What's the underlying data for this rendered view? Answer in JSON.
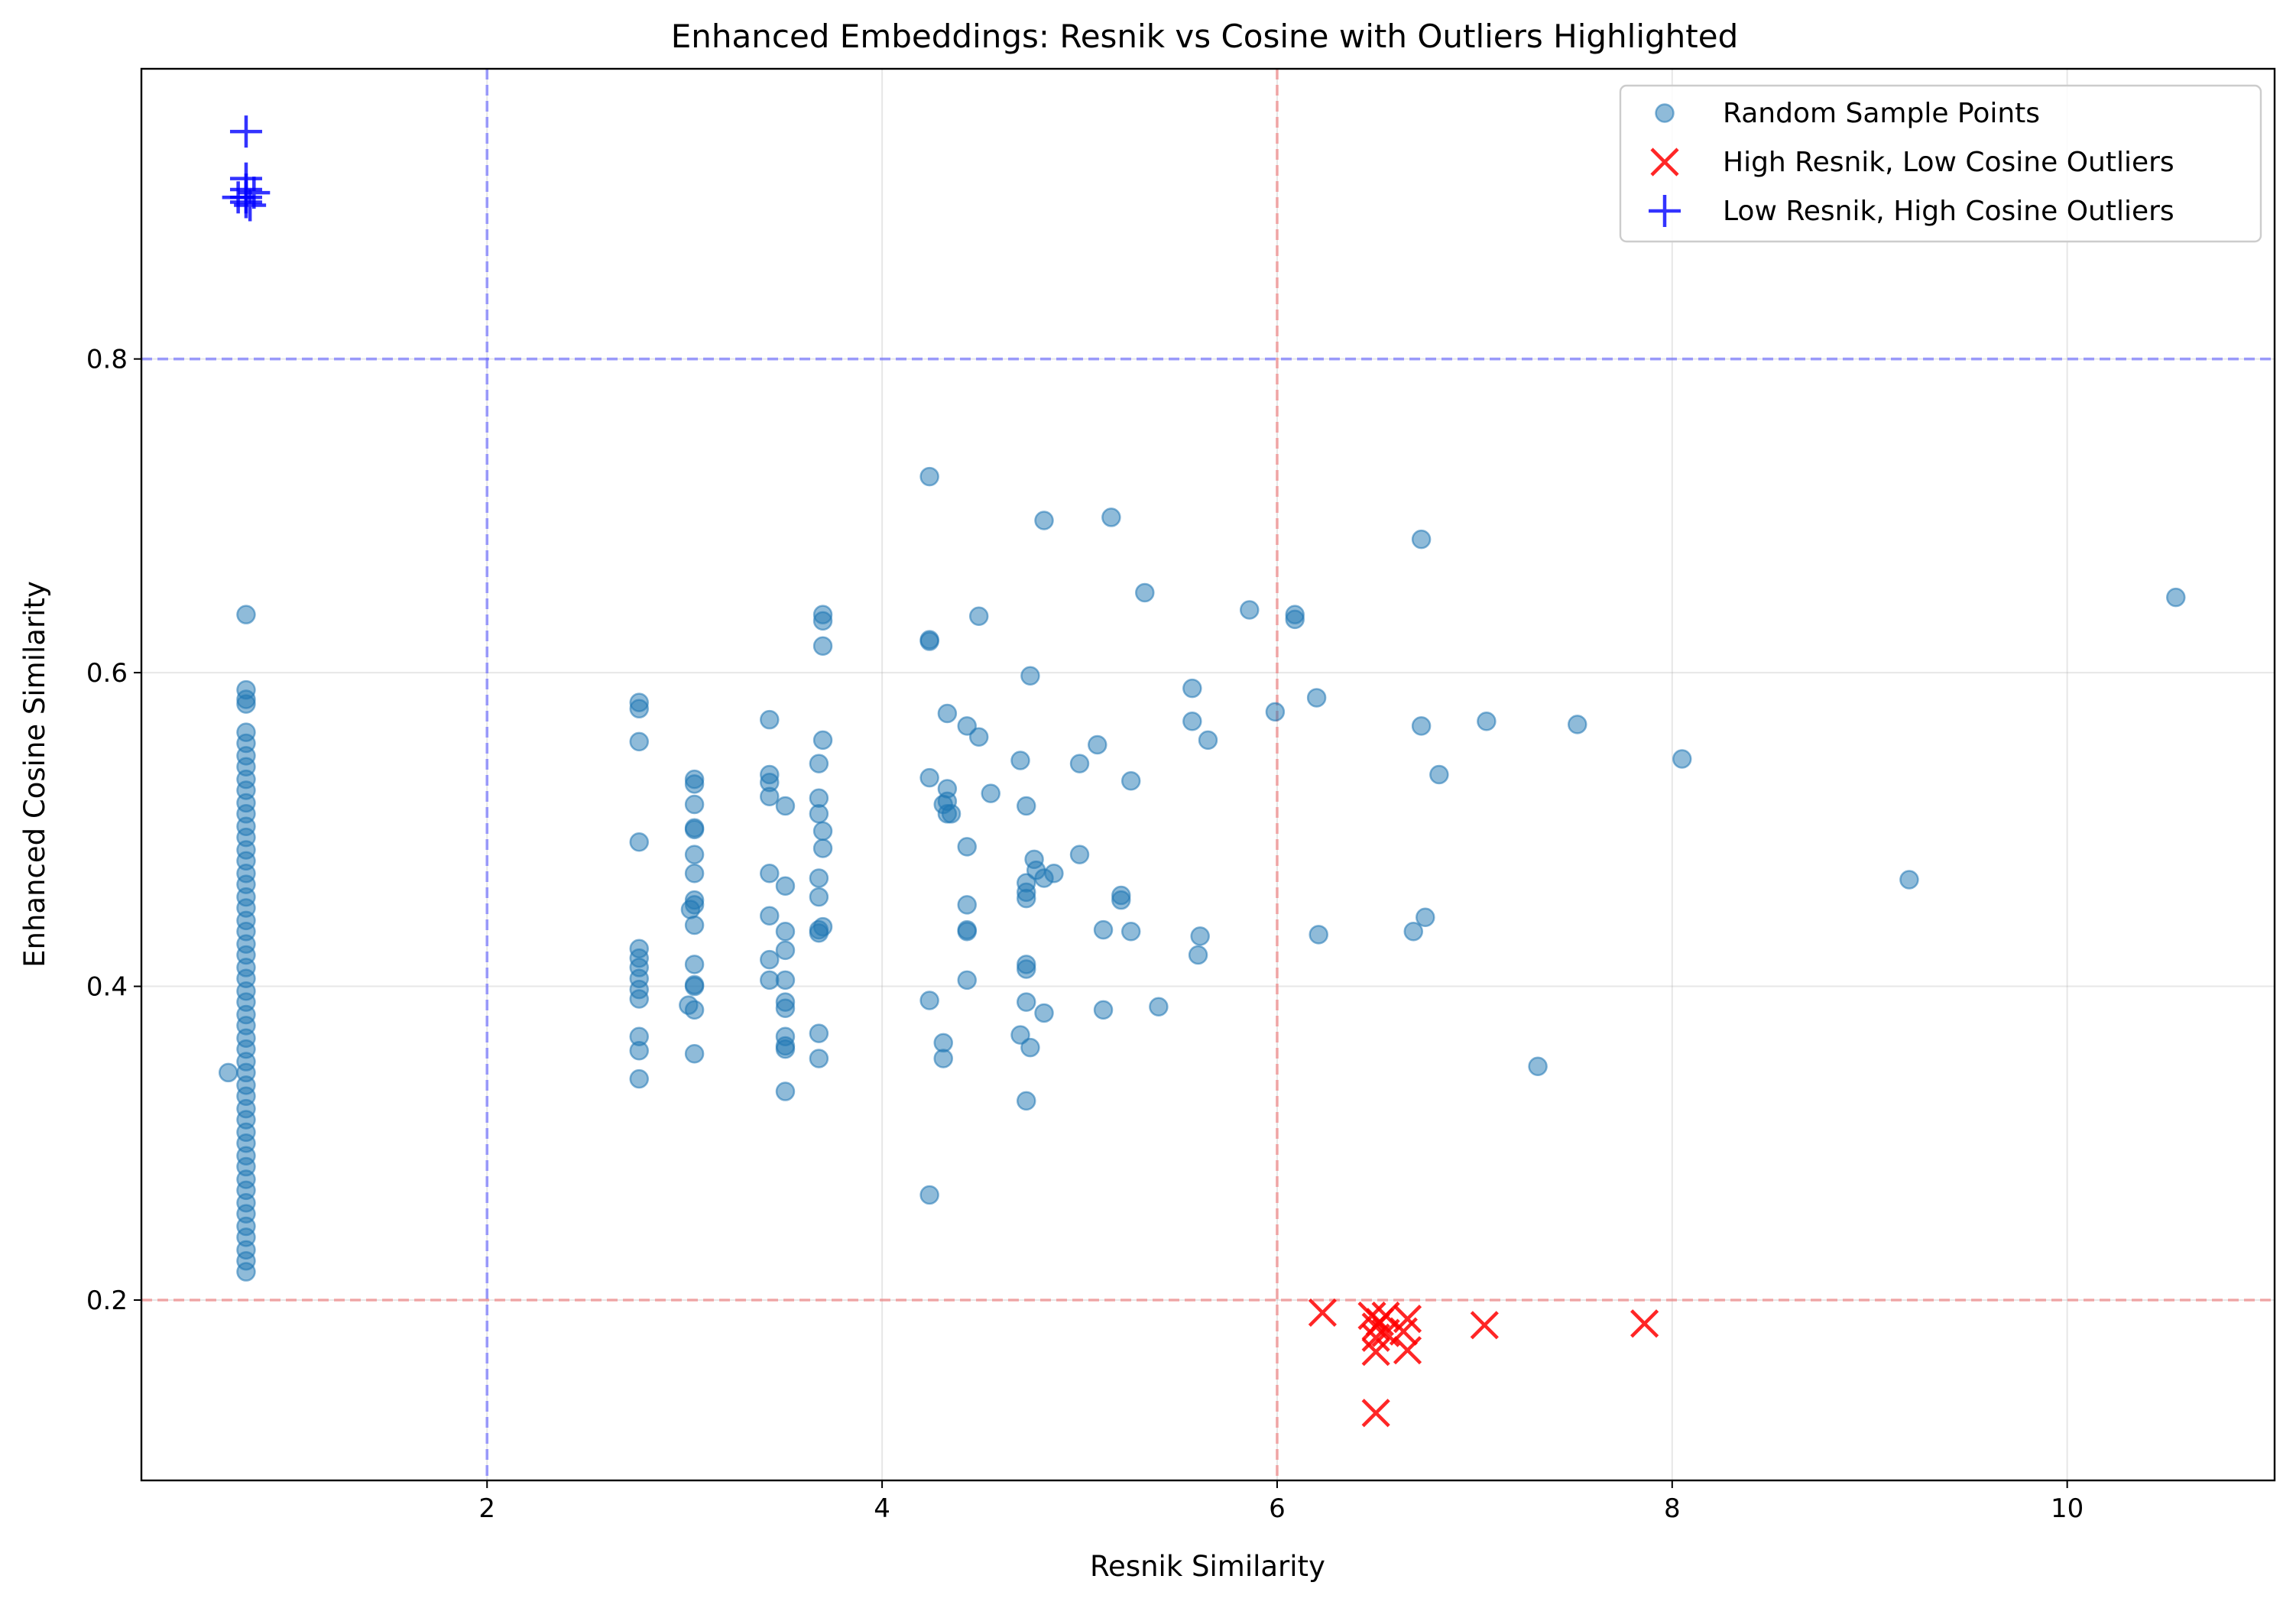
{
  "chart_data": {
    "type": "scatter",
    "title": "Enhanced Embeddings: Resnik vs Cosine with Outliers Highlighted",
    "xlabel": "Resnik Similarity",
    "ylabel": "Enhanced Cosine Similarity",
    "xlim": [
      0.25,
      11.05
    ],
    "ylim": [
      0.085,
      0.985
    ],
    "xticks": [
      2,
      4,
      6,
      8,
      10
    ],
    "yticks": [
      0.2,
      0.4,
      0.6,
      0.8
    ],
    "xtick_labels": [
      "2",
      "4",
      "6",
      "8",
      "10"
    ],
    "ytick_labels": [
      "0.2",
      "0.4",
      "0.6",
      "0.8"
    ],
    "grid": true,
    "legend_position": "top-right",
    "thresholds": [
      {
        "axis": "x",
        "value": 2,
        "color": "#6b6bff",
        "style": "dashed"
      },
      {
        "axis": "x",
        "value": 6,
        "color": "#f08080",
        "style": "dashed"
      },
      {
        "axis": "y",
        "value": 0.8,
        "color": "#6b6bff",
        "style": "dashed"
      },
      {
        "axis": "y",
        "value": 0.2,
        "color": "#f08080",
        "style": "dashed"
      }
    ],
    "series": [
      {
        "name": "Random Sample Points",
        "marker": "circle",
        "color": "#1f77b4",
        "points": [
          [
            0.69,
            0.345
          ],
          [
            0.78,
            0.218
          ],
          [
            0.78,
            0.225
          ],
          [
            0.78,
            0.232
          ],
          [
            0.78,
            0.24
          ],
          [
            0.78,
            0.247
          ],
          [
            0.78,
            0.255
          ],
          [
            0.78,
            0.262
          ],
          [
            0.78,
            0.27
          ],
          [
            0.78,
            0.277
          ],
          [
            0.78,
            0.285
          ],
          [
            0.78,
            0.292
          ],
          [
            0.78,
            0.3
          ],
          [
            0.78,
            0.307
          ],
          [
            0.78,
            0.315
          ],
          [
            0.78,
            0.322
          ],
          [
            0.78,
            0.33
          ],
          [
            0.78,
            0.337
          ],
          [
            0.78,
            0.345
          ],
          [
            0.78,
            0.352
          ],
          [
            0.78,
            0.36
          ],
          [
            0.78,
            0.367
          ],
          [
            0.78,
            0.375
          ],
          [
            0.78,
            0.382
          ],
          [
            0.78,
            0.39
          ],
          [
            0.78,
            0.397
          ],
          [
            0.78,
            0.405
          ],
          [
            0.78,
            0.412
          ],
          [
            0.78,
            0.42
          ],
          [
            0.78,
            0.427
          ],
          [
            0.78,
            0.435
          ],
          [
            0.78,
            0.442
          ],
          [
            0.78,
            0.45
          ],
          [
            0.78,
            0.457
          ],
          [
            0.78,
            0.465
          ],
          [
            0.78,
            0.472
          ],
          [
            0.78,
            0.48
          ],
          [
            0.78,
            0.487
          ],
          [
            0.78,
            0.495
          ],
          [
            0.78,
            0.502
          ],
          [
            0.78,
            0.51
          ],
          [
            0.78,
            0.517
          ],
          [
            0.78,
            0.525
          ],
          [
            0.78,
            0.532
          ],
          [
            0.78,
            0.54
          ],
          [
            0.78,
            0.547
          ],
          [
            0.78,
            0.555
          ],
          [
            0.78,
            0.562
          ],
          [
            0.78,
            0.58
          ],
          [
            0.78,
            0.583
          ],
          [
            0.78,
            0.589
          ],
          [
            0.78,
            0.637
          ],
          [
            2.77,
            0.581
          ],
          [
            2.77,
            0.577
          ],
          [
            2.77,
            0.556
          ],
          [
            2.77,
            0.492
          ],
          [
            2.77,
            0.424
          ],
          [
            2.77,
            0.418
          ],
          [
            2.77,
            0.412
          ],
          [
            2.77,
            0.405
          ],
          [
            2.77,
            0.398
          ],
          [
            2.77,
            0.392
          ],
          [
            2.77,
            0.368
          ],
          [
            2.77,
            0.359
          ],
          [
            2.77,
            0.341
          ],
          [
            3.05,
            0.532
          ],
          [
            3.05,
            0.529
          ],
          [
            3.05,
            0.516
          ],
          [
            3.05,
            0.5
          ],
          [
            3.05,
            0.501
          ],
          [
            3.05,
            0.484
          ],
          [
            3.05,
            0.472
          ],
          [
            3.05,
            0.455
          ],
          [
            3.05,
            0.452
          ],
          [
            3.03,
            0.449
          ],
          [
            3.05,
            0.439
          ],
          [
            3.05,
            0.414
          ],
          [
            3.05,
            0.401
          ],
          [
            3.05,
            0.4
          ],
          [
            3.02,
            0.388
          ],
          [
            3.05,
            0.385
          ],
          [
            3.05,
            0.357
          ],
          [
            3.43,
            0.57
          ],
          [
            3.43,
            0.535
          ],
          [
            3.43,
            0.53
          ],
          [
            3.43,
            0.521
          ],
          [
            3.43,
            0.472
          ],
          [
            3.43,
            0.445
          ],
          [
            3.43,
            0.417
          ],
          [
            3.43,
            0.404
          ],
          [
            3.51,
            0.515
          ],
          [
            3.51,
            0.464
          ],
          [
            3.51,
            0.435
          ],
          [
            3.51,
            0.423
          ],
          [
            3.51,
            0.404
          ],
          [
            3.51,
            0.39
          ],
          [
            3.51,
            0.386
          ],
          [
            3.51,
            0.368
          ],
          [
            3.51,
            0.362
          ],
          [
            3.51,
            0.36
          ],
          [
            3.51,
            0.333
          ],
          [
            3.7,
            0.637
          ],
          [
            3.7,
            0.633
          ],
          [
            3.7,
            0.617
          ],
          [
            3.7,
            0.557
          ],
          [
            3.68,
            0.542
          ],
          [
            3.68,
            0.52
          ],
          [
            3.68,
            0.51
          ],
          [
            3.7,
            0.499
          ],
          [
            3.7,
            0.488
          ],
          [
            3.68,
            0.469
          ],
          [
            3.68,
            0.457
          ],
          [
            3.7,
            0.438
          ],
          [
            3.68,
            0.436
          ],
          [
            3.68,
            0.434
          ],
          [
            3.68,
            0.37
          ],
          [
            3.68,
            0.354
          ],
          [
            4.24,
            0.725
          ],
          [
            4.24,
            0.621
          ],
          [
            4.24,
            0.62
          ],
          [
            4.24,
            0.533
          ],
          [
            4.24,
            0.391
          ],
          [
            4.24,
            0.267
          ],
          [
            4.31,
            0.364
          ],
          [
            4.31,
            0.354
          ],
          [
            4.33,
            0.574
          ],
          [
            4.33,
            0.526
          ],
          [
            4.31,
            0.516
          ],
          [
            4.33,
            0.518
          ],
          [
            4.33,
            0.51
          ],
          [
            4.35,
            0.51
          ],
          [
            4.43,
            0.566
          ],
          [
            4.43,
            0.489
          ],
          [
            4.43,
            0.452
          ],
          [
            4.43,
            0.436
          ],
          [
            4.43,
            0.435
          ],
          [
            4.43,
            0.404
          ],
          [
            4.49,
            0.636
          ],
          [
            4.49,
            0.559
          ],
          [
            4.55,
            0.523
          ],
          [
            4.7,
            0.544
          ],
          [
            4.73,
            0.515
          ],
          [
            4.7,
            0.369
          ],
          [
            4.73,
            0.327
          ],
          [
            4.75,
            0.598
          ],
          [
            4.77,
            0.481
          ],
          [
            4.78,
            0.474
          ],
          [
            4.73,
            0.466
          ],
          [
            4.73,
            0.46
          ],
          [
            4.73,
            0.456
          ],
          [
            4.73,
            0.414
          ],
          [
            4.73,
            0.411
          ],
          [
            4.73,
            0.39
          ],
          [
            4.75,
            0.361
          ],
          [
            4.82,
            0.697
          ],
          [
            4.82,
            0.469
          ],
          [
            4.87,
            0.472
          ],
          [
            4.82,
            0.383
          ],
          [
            5.0,
            0.542
          ],
          [
            5.0,
            0.484
          ],
          [
            5.09,
            0.554
          ],
          [
            5.12,
            0.436
          ],
          [
            5.12,
            0.385
          ],
          [
            5.16,
            0.699
          ],
          [
            5.21,
            0.458
          ],
          [
            5.21,
            0.455
          ],
          [
            5.26,
            0.531
          ],
          [
            5.26,
            0.435
          ],
          [
            5.33,
            0.651
          ],
          [
            5.4,
            0.387
          ],
          [
            5.57,
            0.59
          ],
          [
            5.57,
            0.569
          ],
          [
            5.6,
            0.42
          ],
          [
            5.61,
            0.432
          ],
          [
            5.65,
            0.557
          ],
          [
            5.86,
            0.64
          ],
          [
            5.99,
            0.575
          ],
          [
            6.09,
            0.637
          ],
          [
            6.09,
            0.634
          ],
          [
            6.2,
            0.584
          ],
          [
            6.21,
            0.433
          ],
          [
            6.69,
            0.435
          ],
          [
            6.73,
            0.685
          ],
          [
            6.73,
            0.566
          ],
          [
            6.75,
            0.444
          ],
          [
            6.82,
            0.535
          ],
          [
            7.06,
            0.569
          ],
          [
            7.32,
            0.349
          ],
          [
            7.52,
            0.567
          ],
          [
            8.05,
            0.545
          ],
          [
            9.2,
            0.468
          ],
          [
            10.55,
            0.648
          ]
        ]
      },
      {
        "name": "High Resnik, Low Cosine Outliers",
        "marker": "x",
        "color": "#ff0000",
        "points": [
          [
            6.23,
            0.192
          ],
          [
            6.48,
            0.19
          ],
          [
            6.5,
            0.183
          ],
          [
            6.5,
            0.176
          ],
          [
            6.5,
            0.167
          ],
          [
            6.52,
            0.186
          ],
          [
            6.55,
            0.179
          ],
          [
            6.55,
            0.19
          ],
          [
            6.66,
            0.188
          ],
          [
            6.66,
            0.168
          ],
          [
            6.64,
            0.18
          ],
          [
            7.05,
            0.184
          ],
          [
            7.86,
            0.185
          ],
          [
            6.5,
            0.128
          ]
        ]
      },
      {
        "name": "Low Resnik, High Cosine Outliers",
        "marker": "plus",
        "color": "#0000ff",
        "points": [
          [
            0.78,
            0.945
          ],
          [
            0.78,
            0.915
          ],
          [
            0.78,
            0.908
          ],
          [
            0.78,
            0.903
          ],
          [
            0.78,
            0.9
          ],
          [
            0.74,
            0.903
          ],
          [
            0.82,
            0.906
          ],
          [
            0.8,
            0.898
          ]
        ]
      }
    ]
  }
}
